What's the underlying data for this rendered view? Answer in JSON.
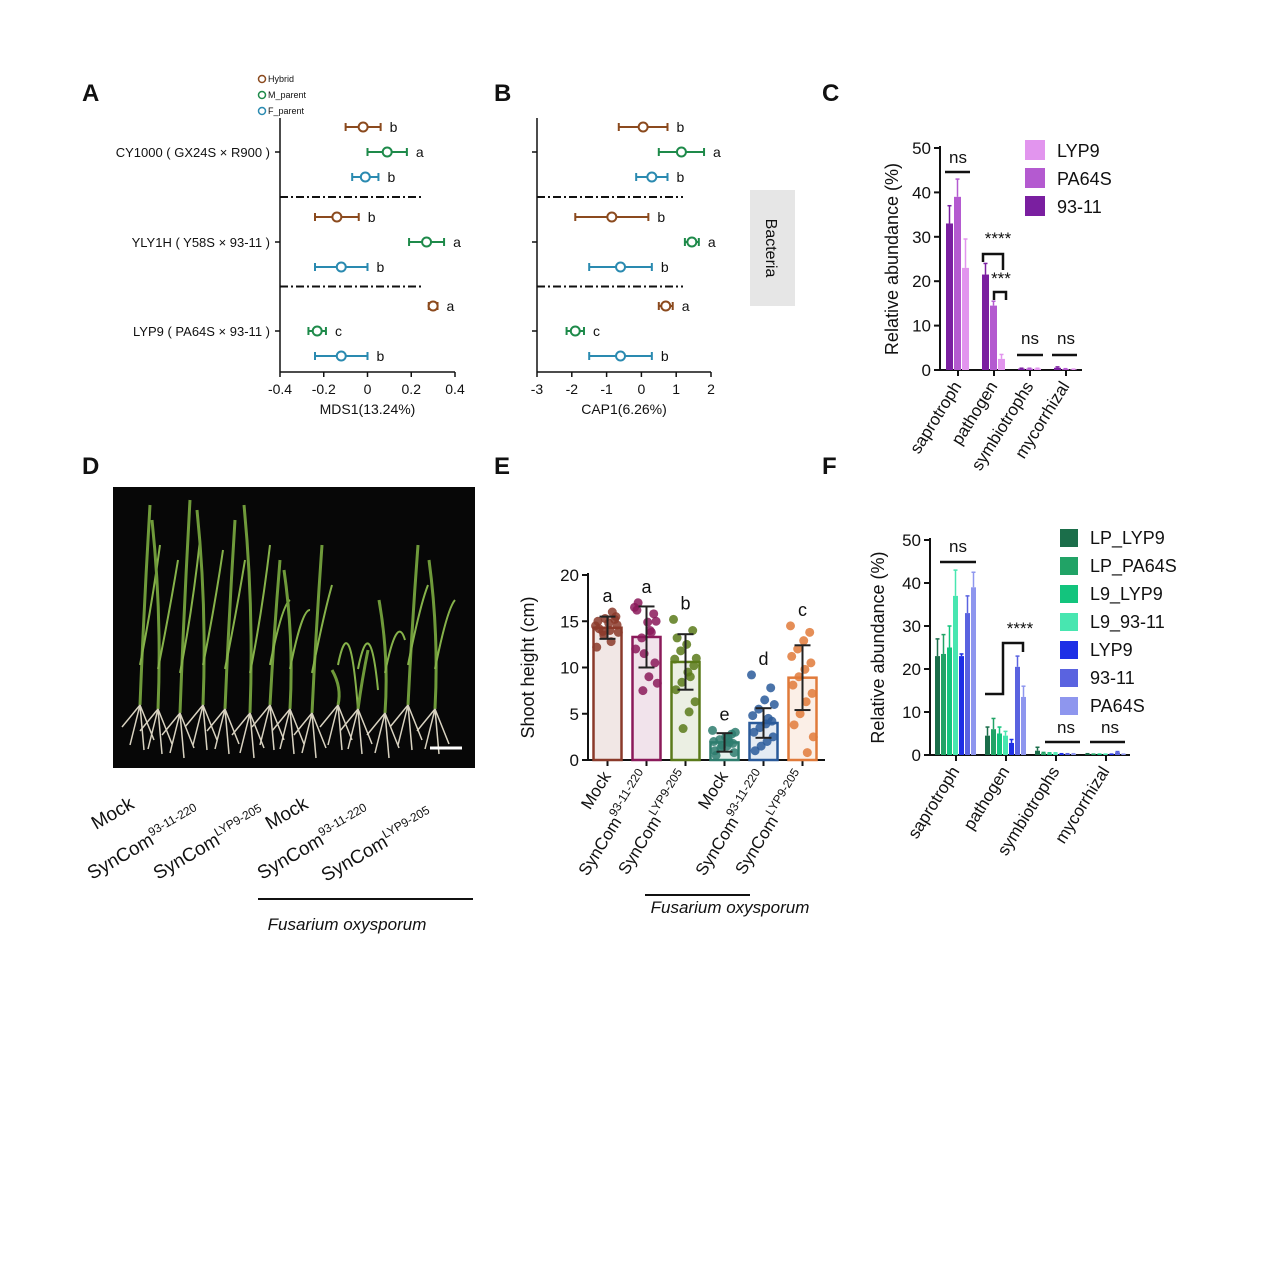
{
  "chart_data": [
    {
      "type": "dot",
      "panel_label": "A",
      "xlabel": "MDS1(13.24%)",
      "xlim": [
        -0.4,
        0.4
      ],
      "xticks": [
        -0.4,
        -0.2,
        0,
        0.2,
        0.4
      ],
      "legend": true,
      "categories": [
        "CY1000 ( GX24S × R900 )",
        "YLY1H ( Y58S × 93-11 )",
        "LYP9 ( PA64S × 93-11 )"
      ],
      "series": [
        {
          "name": "Hybrid",
          "color": "#8b4a1e",
          "values": [
            -0.02,
            -0.14,
            0.3
          ],
          "errors": [
            0.08,
            0.1,
            0.02
          ],
          "letters": [
            "b",
            "b",
            "a"
          ]
        },
        {
          "name": "M_parent",
          "color": "#1e8a4a",
          "values": [
            0.09,
            0.27,
            -0.23
          ],
          "errors": [
            0.09,
            0.08,
            0.04
          ],
          "letters": [
            "a",
            "a",
            "c"
          ]
        },
        {
          "name": "F_parent",
          "color": "#2a8ab0",
          "values": [
            -0.01,
            -0.12,
            -0.12
          ],
          "errors": [
            0.06,
            0.12,
            0.12
          ],
          "letters": [
            "b",
            "b",
            "b"
          ]
        }
      ]
    },
    {
      "type": "dot",
      "panel_label": "B",
      "xlabel": "CAP1(6.26%)",
      "xlim": [
        -3,
        2
      ],
      "xticks": [
        -3,
        -2,
        -1,
        0,
        1,
        2
      ],
      "legend": false,
      "side_label": "Bacteria",
      "categories": [
        null,
        null,
        null
      ],
      "series": [
        {
          "name": "Hybrid",
          "color": "#8b4a1e",
          "values": [
            0.05,
            -0.85,
            0.7
          ],
          "errors": [
            0.7,
            1.05,
            0.2
          ],
          "letters": [
            "b",
            "b",
            "a"
          ]
        },
        {
          "name": "M_parent",
          "color": "#1e8a4a",
          "values": [
            1.15,
            1.45,
            -1.9
          ],
          "errors": [
            0.65,
            0.2,
            0.25
          ],
          "letters": [
            "a",
            "a",
            "c"
          ]
        },
        {
          "name": "F_parent",
          "color": "#2a8ab0",
          "values": [
            0.3,
            -0.6,
            -0.6
          ],
          "errors": [
            0.45,
            0.9,
            0.9
          ],
          "letters": [
            "b",
            "b",
            "b"
          ]
        }
      ]
    },
    {
      "type": "bar",
      "panel_label": "C",
      "ylabel": "Relative abundance (%)",
      "ylim": [
        0,
        50
      ],
      "yticks": [
        0,
        10,
        20,
        30,
        40,
        50
      ],
      "categories": [
        "saprotroph",
        "pathogen",
        "symbiotrophs",
        "mycorrhizal"
      ],
      "series": [
        {
          "name": "LYP9",
          "color": "#e295ee",
          "values": [
            23,
            2.5,
            0.3,
            0.1
          ],
          "errors": [
            6.5,
            1,
            0.1,
            0.1
          ]
        },
        {
          "name": "PA64S",
          "color": "#b45ad0",
          "values": [
            39,
            14.5,
            0.3,
            0.2
          ],
          "errors": [
            4,
            1,
            0.1,
            0.1
          ]
        },
        {
          "name": "93-11",
          "color": "#7a1fa0",
          "values": [
            33,
            21.5,
            0.3,
            0.5
          ],
          "errors": [
            4,
            2.5,
            0.1,
            0.2
          ]
        }
      ],
      "annotations": [
        "ns",
        "****",
        "***",
        "ns",
        "ns"
      ]
    },
    {
      "type": "bar",
      "panel_label": "E",
      "ylabel": "Shoot height (cm)",
      "ylim": [
        0,
        20
      ],
      "yticks": [
        0,
        5,
        10,
        15,
        20
      ],
      "categories": [
        "Mock",
        {
          "text": "SynCom",
          "sup": "93-11-220"
        },
        {
          "text": "SynCom",
          "sup": "LYP9-205"
        },
        "Mock",
        {
          "text": "SynCom",
          "sup": "93-11-220"
        },
        {
          "text": "SynCom",
          "sup": "LYP9-205"
        }
      ],
      "values": [
        14.3,
        13.3,
        10.6,
        1.9,
        4.0,
        8.9
      ],
      "errors": [
        1.2,
        3.3,
        3.0,
        1.0,
        1.6,
        3.5
      ],
      "colors": [
        "#8b3a2a",
        "#8b1a5a",
        "#5a7a1a",
        "#2e7d6e",
        "#2a5a9a",
        "#e07a3a"
      ],
      "letters": [
        "a",
        "a",
        "b",
        "e",
        "d",
        "c"
      ],
      "points": [
        [
          14.5,
          15.2,
          14.8,
          13.9,
          12.2,
          15.5,
          14.0,
          13.5,
          15.0,
          14.6,
          12.8,
          15.3,
          14.2,
          13.8,
          16.0
        ],
        [
          16.5,
          15.8,
          14.9,
          13.2,
          12.0,
          10.5,
          9.0,
          7.5,
          16.2,
          15.0,
          14.0,
          11.5,
          17.0,
          8.3,
          13.8
        ],
        [
          15.2,
          14.0,
          12.5,
          11.8,
          10.9,
          10.2,
          9.5,
          8.4,
          7.6,
          6.3,
          5.2,
          3.4,
          13.2,
          11.0,
          9.0
        ],
        [
          3.2,
          2.8,
          2.5,
          2.2,
          2.0,
          1.8,
          1.5,
          1.3,
          1.0,
          0.8,
          2.4,
          1.6,
          0.5,
          3.0,
          1.9
        ],
        [
          9.2,
          7.8,
          6.5,
          5.5,
          4.8,
          4.2,
          3.9,
          3.5,
          3.0,
          2.5,
          2.0,
          1.5,
          1.0,
          6.0,
          4.5
        ],
        [
          14.5,
          13.8,
          12.9,
          12.0,
          11.2,
          10.5,
          9.8,
          9.0,
          8.1,
          7.2,
          6.3,
          5.0,
          3.8,
          2.5,
          0.8
        ]
      ],
      "group_label": "Fusarium oxysporum"
    },
    {
      "type": "bar",
      "panel_label": "F",
      "ylabel": "Relative abundance (%)",
      "ylim": [
        0,
        50
      ],
      "yticks": [
        0,
        10,
        20,
        30,
        40,
        50
      ],
      "categories": [
        "saprotroph",
        "pathogen",
        "symbiotrophs",
        "mycorrhizal"
      ],
      "series": [
        {
          "name": "LP_LYP9",
          "color": "#1b6e4a",
          "values": [
            23,
            4.5,
            1,
            0.2
          ],
          "errors": [
            4,
            2,
            0.8,
            0.1
          ]
        },
        {
          "name": "LP_PA64S",
          "color": "#21a366",
          "values": [
            23.5,
            6,
            0.4,
            0.1
          ],
          "errors": [
            4.5,
            2.5,
            0.2,
            0.1
          ]
        },
        {
          "name": "L9_LYP9",
          "color": "#13c47d",
          "values": [
            25,
            5,
            0.3,
            0.1
          ],
          "errors": [
            5,
            1.5,
            0.2,
            0.1
          ]
        },
        {
          "name": "L9_93-11",
          "color": "#48e6b0",
          "values": [
            37,
            4.5,
            0.3,
            0.1
          ],
          "errors": [
            6,
            1,
            0.2,
            0.1
          ]
        },
        {
          "name": "LYP9",
          "color": "#1d2fe6",
          "values": [
            23,
            2.8,
            0.2,
            0.1
          ],
          "errors": [
            0.5,
            0.8,
            0.1,
            0.1
          ]
        },
        {
          "name": "93-11",
          "color": "#5a63e0",
          "values": [
            33,
            20.5,
            0.2,
            0.6
          ],
          "errors": [
            4,
            2.5,
            0.1,
            0.2
          ]
        },
        {
          "name": "PA64S",
          "color": "#8e96ee",
          "values": [
            39,
            13.5,
            0.2,
            0.1
          ],
          "errors": [
            3.5,
            2.5,
            0.1,
            0.1
          ]
        }
      ],
      "annotations": [
        "ns",
        "****",
        "ns",
        "ns"
      ]
    }
  ],
  "photo_panel": {
    "panel_label": "D",
    "labels": [
      "Mock",
      {
        "text": "SynCom",
        "sup": "93-11-220"
      },
      {
        "text": "SynCom",
        "sup": "LYP9-205"
      },
      "Mock",
      {
        "text": "SynCom",
        "sup": "93-11-220"
      },
      {
        "text": "SynCom",
        "sup": "LYP9-205"
      }
    ],
    "group_label": "Fusarium oxysporum"
  }
}
